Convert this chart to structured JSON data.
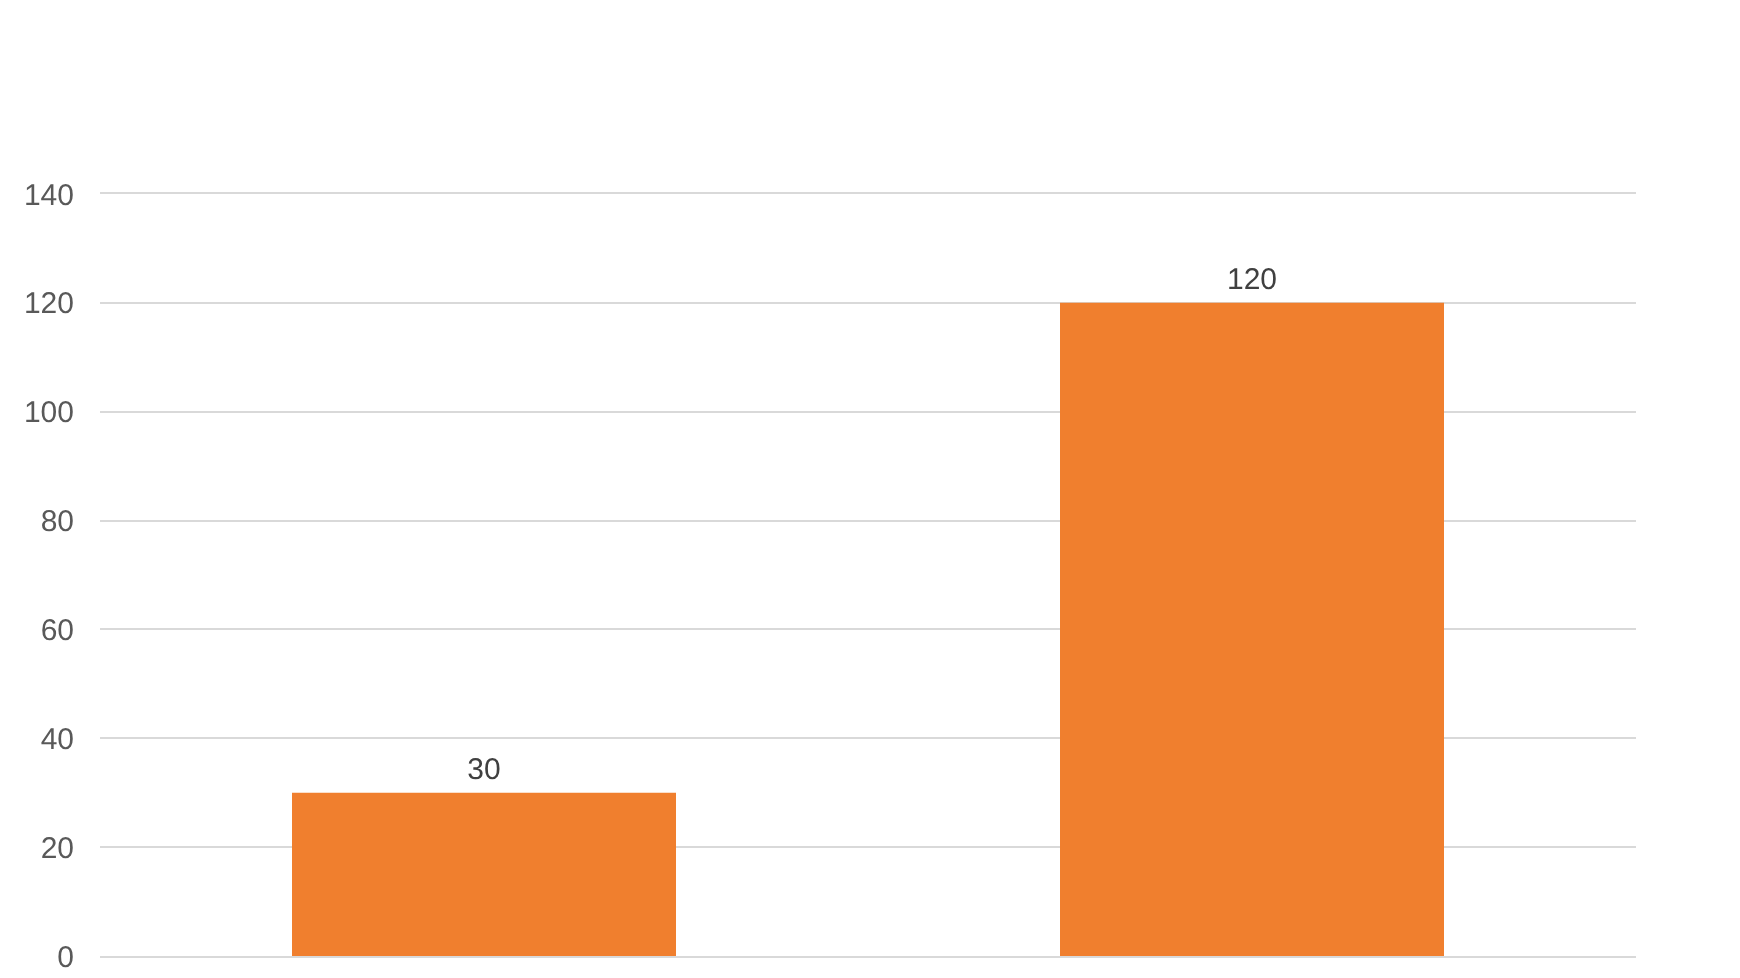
{
  "chart_data": {
    "type": "bar",
    "categories": [
      null,
      null
    ],
    "values": [
      30,
      120
    ],
    "color": "#f07f2e",
    "ylim": [
      0,
      140
    ],
    "yticks": [
      0,
      20,
      40,
      60,
      80,
      100,
      120,
      140
    ],
    "grid": "y",
    "data_labels": true
  }
}
